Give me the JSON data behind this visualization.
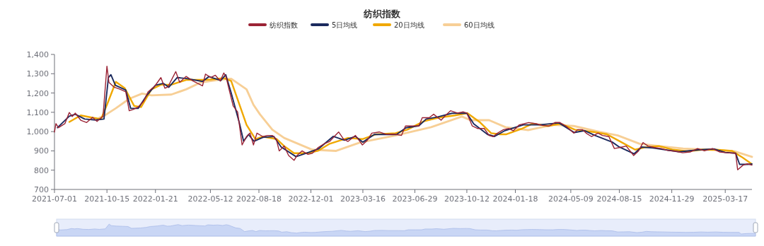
{
  "chart_data": {
    "type": "line",
    "title": "纺织指数",
    "legend": "top",
    "grid": false,
    "marker": "none",
    "line_style": "solid",
    "xlim": [
      "2021-07-01",
      "2025-05-10"
    ],
    "ylim": [
      700,
      1400
    ],
    "xticks": [
      "2021-07-01",
      "2021-10-15",
      "2022-01-21",
      "2022-05-12",
      "2022-08-18",
      "2022-12-01",
      "2023-03-16",
      "2023-06-29",
      "2023-10-12",
      "2024-01-18",
      "2024-05-09",
      "2024-08-15",
      "2024-11-29",
      "2025-03-17"
    ],
    "yticks": [
      700,
      800,
      900,
      {
        "value": 1000,
        "label": "1,000"
      },
      {
        "value": 1100,
        "label": "1,100"
      },
      {
        "value": 1200,
        "label": "1,200"
      },
      {
        "value": 1300,
        "label": "1,300"
      },
      {
        "value": 1400,
        "label": "1,400"
      }
    ],
    "series": [
      {
        "name": "纺织指数",
        "color": "#9b2335",
        "x": [
          "2021-07-01",
          "2021-07-04",
          "2021-07-09",
          "2021-07-22",
          "2021-07-31",
          "2021-08-06",
          "2021-08-12",
          "2021-08-23",
          "2021-09-04",
          "2021-09-16",
          "2021-09-25",
          "2021-10-03",
          "2021-10-07",
          "2021-10-15",
          "2021-10-19",
          "2021-10-29",
          "2021-11-11",
          "2021-11-22",
          "2021-11-29",
          "2021-12-06",
          "2021-12-17",
          "2021-12-28",
          "2022-01-06",
          "2022-01-20",
          "2022-02-01",
          "2022-02-09",
          "2022-02-15",
          "2022-03-03",
          "2022-03-11",
          "2022-03-24",
          "2022-04-07",
          "2022-04-26",
          "2022-05-02",
          "2022-05-13",
          "2022-05-22",
          "2022-06-01",
          "2022-06-08",
          "2022-06-13",
          "2022-06-17",
          "2022-06-27",
          "2022-07-06",
          "2022-07-15",
          "2022-07-24",
          "2022-07-31",
          "2022-08-07",
          "2022-08-14",
          "2022-08-26",
          "2022-09-04",
          "2022-09-14",
          "2022-09-22",
          "2022-09-28",
          "2022-10-08",
          "2022-10-17",
          "2022-10-28",
          "2022-11-03",
          "2022-11-13",
          "2022-11-25",
          "2022-12-04",
          "2022-12-16",
          "2022-12-28",
          "2023-01-08",
          "2023-01-17",
          "2023-01-26",
          "2023-02-05",
          "2023-02-14",
          "2023-03-01",
          "2023-03-15",
          "2023-03-25",
          "2023-04-03",
          "2023-04-18",
          "2023-05-02",
          "2023-05-21",
          "2023-06-02",
          "2023-06-10",
          "2023-06-25",
          "2023-07-07",
          "2023-07-14",
          "2023-07-28",
          "2023-08-06",
          "2023-08-21",
          "2023-08-30",
          "2023-09-09",
          "2023-09-23",
          "2023-10-05",
          "2023-10-12",
          "2023-10-23",
          "2023-11-03",
          "2023-11-16",
          "2023-11-26",
          "2023-12-04",
          "2023-12-13",
          "2023-12-25",
          "2024-01-05",
          "2024-01-14",
          "2024-01-26",
          "2024-02-05",
          "2024-02-14",
          "2024-02-29",
          "2024-03-12",
          "2024-03-27",
          "2024-04-07",
          "2024-04-17",
          "2024-04-29",
          "2024-05-15",
          "2024-05-23",
          "2024-06-02",
          "2024-06-09",
          "2024-06-20",
          "2024-07-03",
          "2024-07-12",
          "2024-07-25",
          "2024-08-05",
          "2024-08-17",
          "2024-08-29",
          "2024-09-13",
          "2024-09-23",
          "2024-10-02",
          "2024-10-12",
          "2024-10-24",
          "2024-11-08",
          "2024-11-21",
          "2024-12-07",
          "2024-12-21",
          "2025-01-05",
          "2025-01-20",
          "2025-02-03",
          "2025-02-19",
          "2025-03-06",
          "2025-03-20",
          "2025-04-07",
          "2025-04-11",
          "2025-04-22",
          "2025-05-01",
          "2025-05-10"
        ],
        "values": [
          998,
          1041,
          1020,
          1041,
          1099,
          1078,
          1096,
          1059,
          1047,
          1074,
          1053,
          1072,
          1078,
          1339,
          1255,
          1231,
          1219,
          1206,
          1108,
          1114,
          1127,
          1157,
          1206,
          1237,
          1280,
          1225,
          1231,
          1311,
          1255,
          1286,
          1262,
          1237,
          1298,
          1280,
          1292,
          1262,
          1304,
          1280,
          1237,
          1133,
          1102,
          931,
          974,
          992,
          931,
          992,
          974,
          980,
          980,
          961,
          900,
          925,
          876,
          851,
          876,
          900,
          882,
          888,
          918,
          937,
          949,
          974,
          998,
          961,
          949,
          980,
          931,
          955,
          992,
          998,
          986,
          986,
          980,
          1029,
          1029,
          1029,
          1072,
          1072,
          1090,
          1059,
          1084,
          1108,
          1096,
          1102,
          1096,
          1029,
          1016,
          1016,
          980,
          974,
          992,
          1010,
          1016,
          1004,
          1035,
          1041,
          1047,
          1041,
          1032,
          1029,
          1047,
          1047,
          1029,
          992,
          1010,
          1010,
          992,
          974,
          992,
          980,
          974,
          912,
          918,
          925,
          876,
          900,
          943,
          925,
          918,
          912,
          902,
          898,
          890,
          894,
          912,
          900,
          912,
          894,
          890,
          888,
          802,
          826,
          833,
          826
        ]
      },
      {
        "name": "5日均线",
        "color": "#1b2a5e",
        "x": [
          "2021-07-07",
          "2021-07-31",
          "2021-08-12",
          "2021-08-31",
          "2021-09-22",
          "2021-10-09",
          "2021-10-18",
          "2021-10-23",
          "2021-11-01",
          "2021-11-22",
          "2021-12-02",
          "2021-12-17",
          "2022-01-04",
          "2022-01-21",
          "2022-02-06",
          "2022-02-17",
          "2022-03-06",
          "2022-03-25",
          "2022-04-26",
          "2022-05-09",
          "2022-06-02",
          "2022-06-12",
          "2022-06-23",
          "2022-07-10",
          "2022-07-18",
          "2022-07-28",
          "2022-08-08",
          "2022-08-26",
          "2022-09-17",
          "2022-10-02",
          "2022-11-01",
          "2022-11-24",
          "2022-12-16",
          "2023-01-15",
          "2023-02-07",
          "2023-03-01",
          "2023-03-16",
          "2023-04-08",
          "2023-05-23",
          "2023-06-11",
          "2023-07-07",
          "2023-07-22",
          "2023-08-13",
          "2023-09-12",
          "2023-10-12",
          "2023-10-26",
          "2023-11-23",
          "2023-12-07",
          "2023-12-28",
          "2024-02-03",
          "2024-03-06",
          "2024-04-15",
          "2024-05-16",
          "2024-06-06",
          "2024-06-27",
          "2024-08-01",
          "2024-08-15",
          "2024-09-14",
          "2024-09-29",
          "2024-10-22",
          "2024-12-14",
          "2025-01-22",
          "2025-02-22",
          "2025-03-17",
          "2025-04-07",
          "2025-04-15",
          "2025-05-01",
          "2025-05-10"
        ],
        "values": [
          1020,
          1080,
          1090,
          1065,
          1060,
          1065,
          1280,
          1295,
          1240,
          1215,
          1120,
          1120,
          1190,
          1240,
          1250,
          1230,
          1280,
          1275,
          1260,
          1285,
          1265,
          1295,
          1200,
          1040,
          950,
          985,
          950,
          970,
          975,
          920,
          870,
          890,
          910,
          975,
          955,
          975,
          945,
          985,
          985,
          1020,
          1030,
          1065,
          1075,
          1095,
          1095,
          1040,
          985,
          975,
          1005,
          1035,
          1035,
          1045,
          995,
          1005,
          980,
          945,
          920,
          885,
          920,
          915,
          895,
          905,
          910,
          892,
          888,
          830,
          830,
          832
        ]
      },
      {
        "name": "20日均线",
        "color": "#f0a800",
        "x": [
          "2021-07-31",
          "2021-08-23",
          "2021-09-16",
          "2021-10-03",
          "2021-10-15",
          "2021-11-02",
          "2021-11-20",
          "2021-12-09",
          "2021-12-23",
          "2022-01-13",
          "2022-02-01",
          "2022-02-22",
          "2022-03-24",
          "2022-04-23",
          "2022-05-13",
          "2022-06-09",
          "2022-06-23",
          "2022-07-24",
          "2022-08-11",
          "2022-08-26",
          "2022-09-23",
          "2022-10-08",
          "2022-10-28",
          "2022-11-25",
          "2022-12-15",
          "2023-01-08",
          "2023-02-14",
          "2023-03-15",
          "2023-04-12",
          "2023-05-21",
          "2023-06-14",
          "2023-07-17",
          "2023-08-15",
          "2023-09-18",
          "2023-10-13",
          "2023-11-08",
          "2023-11-30",
          "2023-12-18",
          "2023-12-31",
          "2024-02-01",
          "2024-02-22",
          "2024-03-24",
          "2024-04-18",
          "2024-05-17",
          "2024-06-24",
          "2024-07-21",
          "2024-08-12",
          "2024-09-16",
          "2024-10-05",
          "2024-11-03",
          "2024-12-02",
          "2024-12-31",
          "2025-01-30",
          "2025-02-28",
          "2025-03-31",
          "2025-04-19",
          "2025-05-09"
        ],
        "values": [
          1050,
          1084,
          1072,
          1065,
          1139,
          1258,
          1225,
          1133,
          1127,
          1219,
          1243,
          1243,
          1268,
          1268,
          1270,
          1277,
          1262,
          1035,
          961,
          974,
          961,
          925,
          888,
          888,
          900,
          937,
          967,
          961,
          986,
          992,
          1010,
          1053,
          1072,
          1084,
          1096,
          1047,
          992,
          986,
          986,
          1016,
          1041,
          1029,
          1041,
          1010,
          998,
          986,
          955,
          906,
          918,
          925,
          906,
          898,
          906,
          906,
          900,
          869,
          833
        ]
      },
      {
        "name": "60日均线",
        "color": "#f7cf96",
        "x": [
          "2021-09-30",
          "2021-10-07",
          "2021-11-02",
          "2021-11-29",
          "2021-12-25",
          "2022-01-13",
          "2022-02-22",
          "2022-03-24",
          "2022-04-23",
          "2022-06-01",
          "2022-06-23",
          "2022-07-24",
          "2022-08-07",
          "2022-08-20",
          "2022-09-14",
          "2022-10-08",
          "2022-12-04",
          "2023-01-21",
          "2023-03-10",
          "2023-05-21",
          "2023-08-01",
          "2023-10-02",
          "2023-10-20",
          "2023-11-26",
          "2023-12-29",
          "2024-02-13",
          "2024-04-04",
          "2024-05-15",
          "2024-07-07",
          "2024-08-12",
          "2024-09-25",
          "2024-11-03",
          "2024-12-22",
          "2025-02-10",
          "2025-04-04",
          "2025-05-10"
        ],
        "values": [
          1072,
          1078,
          1121,
          1170,
          1197,
          1188,
          1192,
          1219,
          1255,
          1270,
          1274,
          1219,
          1139,
          1090,
          1010,
          967,
          906,
          900,
          943,
          980,
          1023,
          1078,
          1059,
          1059,
          1023,
          1008,
          1035,
          1029,
          998,
          980,
          937,
          925,
          912,
          906,
          898,
          869
        ]
      }
    ]
  }
}
